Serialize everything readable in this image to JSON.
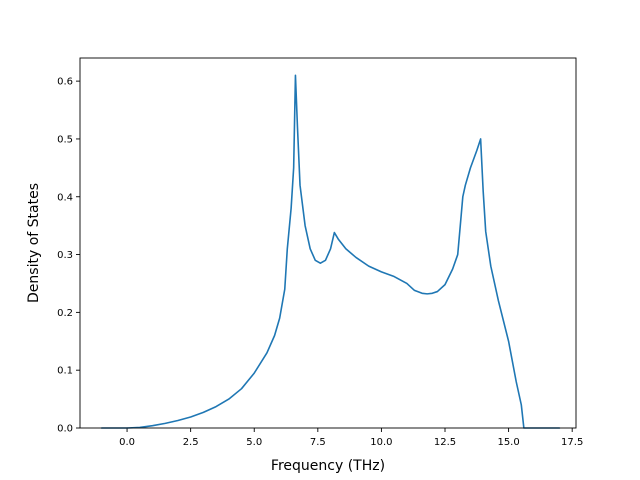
{
  "chart_data": {
    "type": "line",
    "title": "",
    "xlabel": "Frequency (THz)",
    "ylabel": "Density of States",
    "xlim": [
      -1.85,
      17.65
    ],
    "ylim": [
      0.0,
      0.64
    ],
    "xticks": [
      0.0,
      2.5,
      5.0,
      7.5,
      10.0,
      12.5,
      15.0,
      17.5
    ],
    "xtick_labels": [
      "0.0",
      "2.5",
      "5.0",
      "7.5",
      "10.0",
      "12.5",
      "15.0",
      "17.5"
    ],
    "yticks": [
      0.0,
      0.1,
      0.2,
      0.3,
      0.4,
      0.5,
      0.6
    ],
    "ytick_labels": [
      "0.0",
      "0.1",
      "0.2",
      "0.3",
      "0.4",
      "0.5",
      "0.6"
    ],
    "grid": false,
    "legend": "none",
    "line_color": "#1f77b4",
    "series": [
      {
        "x": [
          -1.0,
          0.0,
          0.5,
          1.0,
          1.5,
          2.0,
          2.5,
          3.0,
          3.5,
          4.0,
          4.5,
          5.0,
          5.5,
          5.8,
          6.0,
          6.2,
          6.3,
          6.45,
          6.55,
          6.62,
          6.7,
          6.8,
          7.0,
          7.2,
          7.4,
          7.6,
          7.8,
          8.0,
          8.15,
          8.3,
          8.6,
          9.0,
          9.5,
          10.0,
          10.5,
          11.0,
          11.3,
          11.6,
          11.8,
          12.0,
          12.2,
          12.5,
          12.8,
          13.0,
          13.1,
          13.2,
          13.3,
          13.5,
          13.75,
          13.9,
          14.0,
          14.1,
          14.3,
          14.6,
          15.0,
          15.3,
          15.5,
          15.6,
          16.0,
          17.0
        ],
        "y": [
          0.0,
          0.0,
          0.001,
          0.004,
          0.008,
          0.013,
          0.019,
          0.027,
          0.037,
          0.05,
          0.068,
          0.095,
          0.13,
          0.16,
          0.19,
          0.24,
          0.31,
          0.38,
          0.45,
          0.61,
          0.52,
          0.42,
          0.35,
          0.31,
          0.29,
          0.285,
          0.29,
          0.31,
          0.338,
          0.327,
          0.31,
          0.295,
          0.28,
          0.27,
          0.262,
          0.25,
          0.238,
          0.233,
          0.232,
          0.233,
          0.236,
          0.248,
          0.275,
          0.3,
          0.35,
          0.4,
          0.42,
          0.45,
          0.48,
          0.5,
          0.41,
          0.34,
          0.28,
          0.22,
          0.15,
          0.08,
          0.04,
          0.0,
          0.0,
          0.0
        ]
      }
    ]
  }
}
